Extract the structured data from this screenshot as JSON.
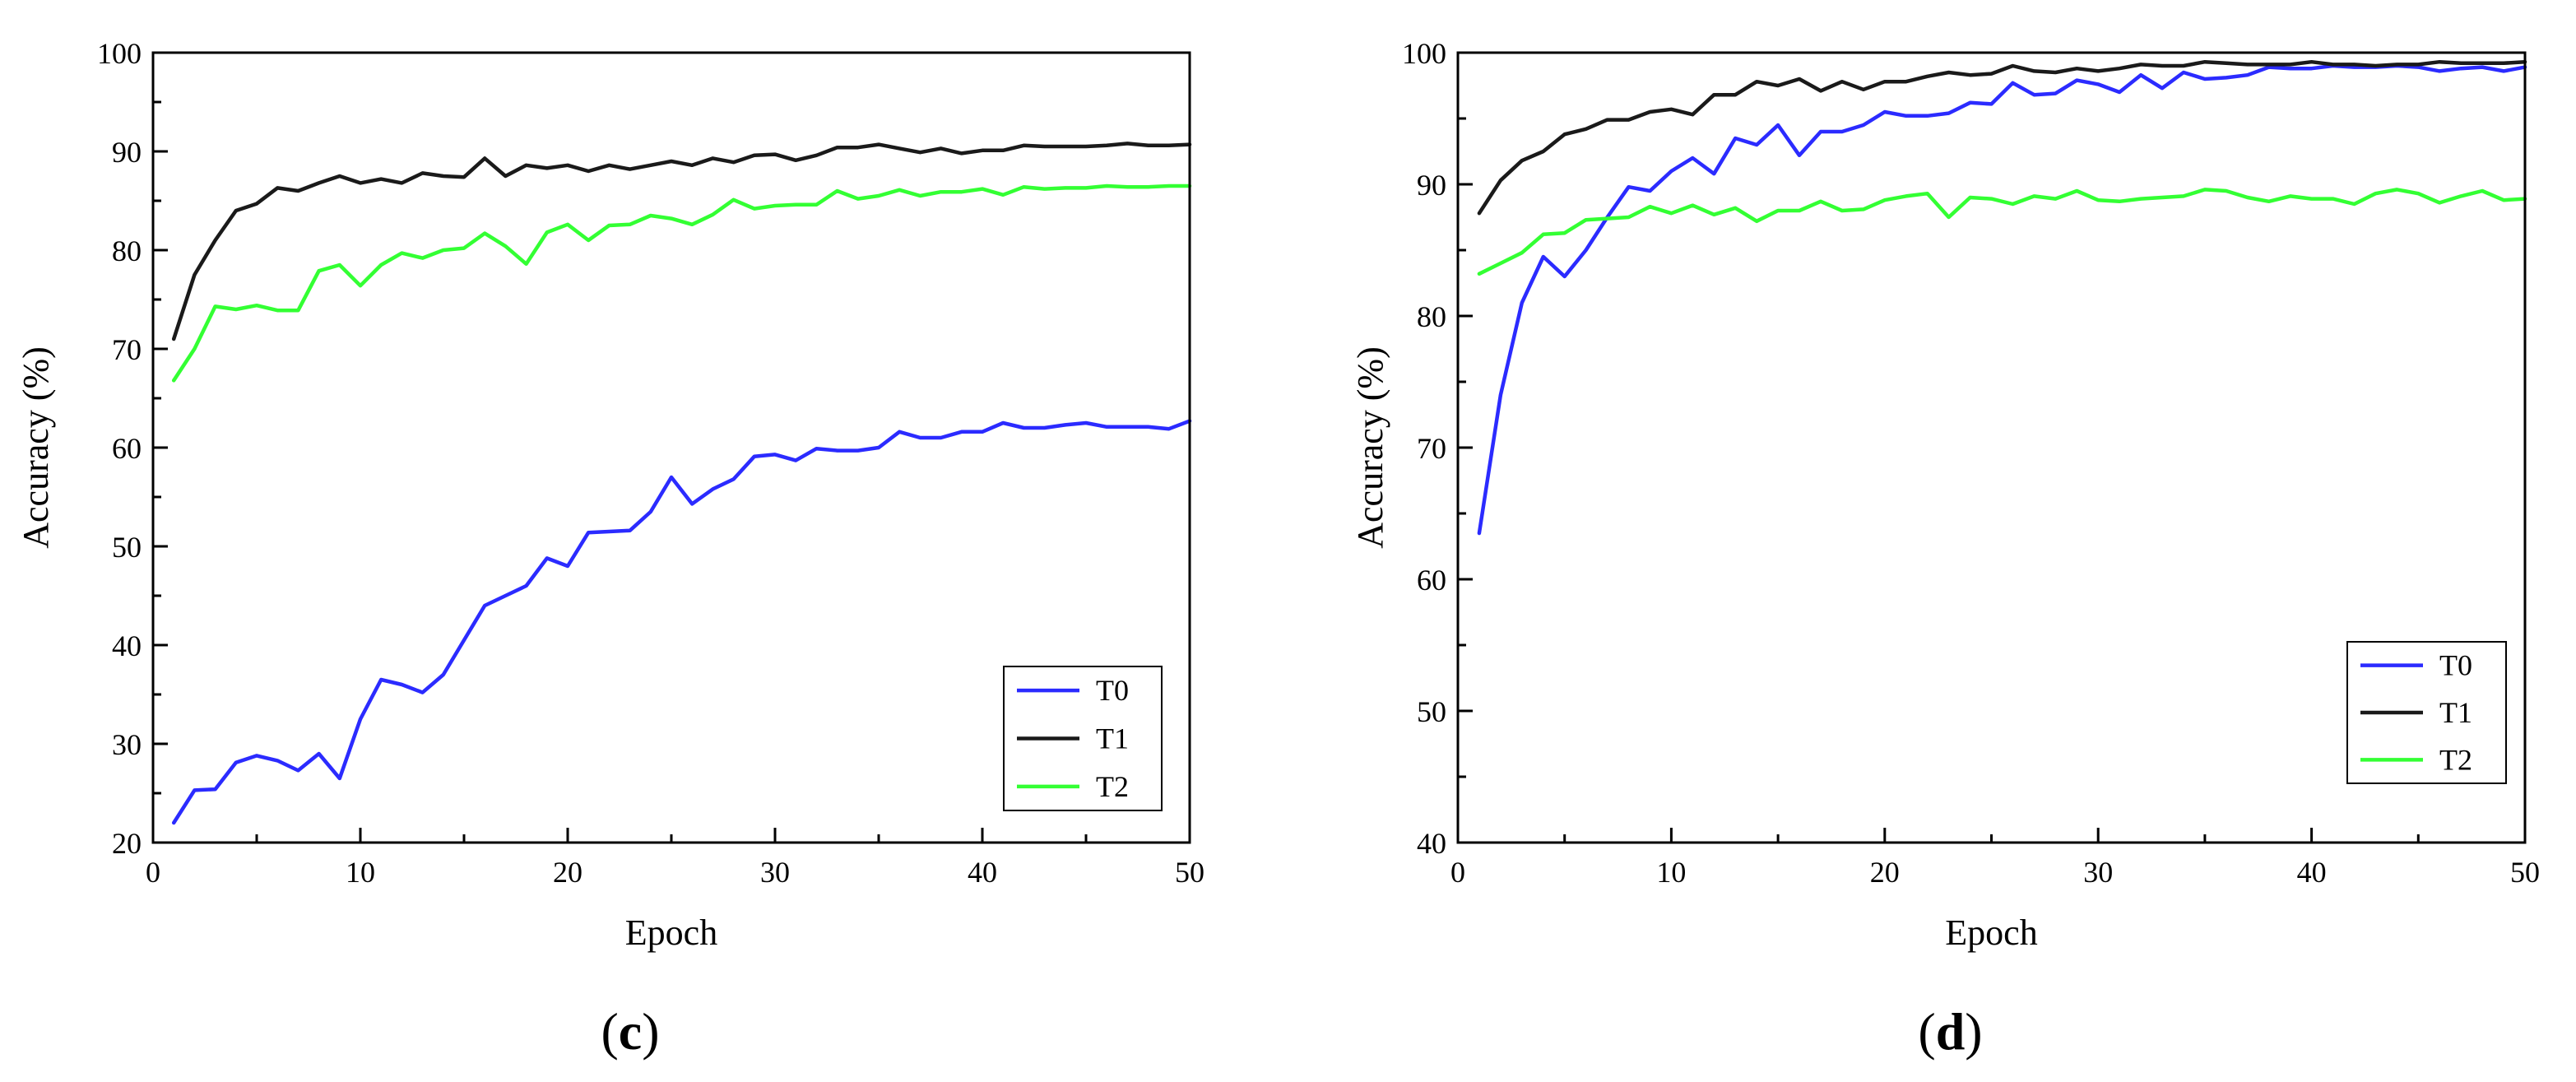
{
  "chart_data": [
    {
      "type": "line",
      "panel_label": {
        "open": "(",
        "letter": "c",
        "close": ")"
      },
      "xlabel": "Epoch",
      "ylabel": "Accuracy (%)",
      "xlim": [
        0,
        50
      ],
      "ylim": [
        20,
        100
      ],
      "xticks": [
        0,
        10,
        20,
        30,
        40,
        50
      ],
      "yticks": [
        20,
        30,
        40,
        50,
        60,
        70,
        80,
        90,
        100
      ],
      "grid": false,
      "legend": "bottom-right",
      "x": [
        1,
        2,
        3,
        4,
        5,
        6,
        7,
        8,
        9,
        10,
        11,
        12,
        13,
        14,
        15,
        16,
        17,
        18,
        19,
        20,
        21,
        22,
        23,
        24,
        25,
        26,
        27,
        28,
        29,
        30,
        31,
        32,
        33,
        34,
        35,
        36,
        37,
        38,
        39,
        40,
        41,
        42,
        43,
        44,
        45,
        46,
        47,
        48,
        49,
        50
      ],
      "series": [
        {
          "name": "T0",
          "color": "#2b2bff",
          "values": [
            22,
            25.3,
            25.4,
            28.1,
            28.8,
            28.3,
            27.3,
            29,
            26.5,
            32.5,
            36.5,
            36,
            35.2,
            37,
            40.5,
            44,
            45,
            46,
            48.8,
            48,
            51.4,
            51.5,
            51.6,
            53.5,
            57,
            54.3,
            55.8,
            56.8,
            59.1,
            59.3,
            58.7,
            59.9,
            59.7,
            59.7,
            60,
            61.6,
            61,
            61,
            61.6,
            61.6,
            62.5,
            62,
            62,
            62.3,
            62.5,
            62.1,
            62.1,
            62.1,
            61.9,
            62.7
          ]
        },
        {
          "name": "T1",
          "color": "#1a1a1a",
          "values": [
            71,
            77.5,
            81,
            84,
            84.7,
            86.3,
            86,
            86.8,
            87.5,
            86.8,
            87.2,
            86.8,
            87.8,
            87.5,
            87.4,
            89.3,
            87.5,
            88.6,
            88.3,
            88.6,
            88,
            88.6,
            88.2,
            88.6,
            89,
            88.6,
            89.3,
            88.9,
            89.6,
            89.7,
            89.1,
            89.6,
            90.4,
            90.4,
            90.7,
            90.3,
            89.9,
            90.3,
            89.8,
            90.1,
            90.1,
            90.6,
            90.5,
            90.5,
            90.5,
            90.6,
            90.8,
            90.6,
            90.6,
            90.7
          ]
        },
        {
          "name": "T2",
          "color": "#33ff33",
          "values": [
            66.8,
            70,
            74.3,
            74,
            74.4,
            73.9,
            73.9,
            77.9,
            78.5,
            76.4,
            78.5,
            79.7,
            79.2,
            80,
            80.2,
            81.7,
            80.4,
            78.6,
            81.8,
            82.6,
            81,
            82.5,
            82.6,
            83.5,
            83.2,
            82.6,
            83.6,
            85.1,
            84.2,
            84.5,
            84.6,
            84.6,
            86,
            85.2,
            85.5,
            86.1,
            85.5,
            85.9,
            85.9,
            86.2,
            85.6,
            86.4,
            86.2,
            86.3,
            86.3,
            86.5,
            86.4,
            86.4,
            86.5,
            86.5
          ]
        }
      ]
    },
    {
      "type": "line",
      "panel_label": {
        "open": "(",
        "letter": "d",
        "close": ")"
      },
      "xlabel": "Epoch",
      "ylabel": "Accuracy (%)",
      "xlim": [
        0,
        50
      ],
      "ylim": [
        40,
        100
      ],
      "xticks": [
        0,
        10,
        20,
        30,
        40,
        50
      ],
      "yticks": [
        40,
        50,
        60,
        70,
        80,
        90,
        100
      ],
      "grid": false,
      "legend": "bottom-right",
      "x": [
        1,
        2,
        3,
        4,
        5,
        6,
        7,
        8,
        9,
        10,
        11,
        12,
        13,
        14,
        15,
        16,
        17,
        18,
        19,
        20,
        21,
        22,
        23,
        24,
        25,
        26,
        27,
        28,
        29,
        30,
        31,
        32,
        33,
        34,
        35,
        36,
        37,
        38,
        39,
        40,
        41,
        42,
        43,
        44,
        45,
        46,
        47,
        48,
        49,
        50
      ],
      "series": [
        {
          "name": "T0",
          "color": "#2b2bff",
          "values": [
            63.5,
            74,
            81,
            84.5,
            83,
            85,
            87.5,
            89.8,
            89.5,
            91,
            92,
            90.8,
            93.5,
            93,
            94.5,
            92.2,
            94,
            94,
            94.5,
            95.5,
            95.2,
            95.2,
            95.4,
            96.2,
            96.1,
            97.7,
            96.8,
            96.9,
            97.9,
            97.6,
            97,
            98.3,
            97.3,
            98.5,
            98,
            98.1,
            98.3,
            98.9,
            98.8,
            98.8,
            99,
            98.9,
            98.9,
            99,
            98.9,
            98.6,
            98.8,
            98.9,
            98.6,
            98.9
          ]
        },
        {
          "name": "T1",
          "color": "#1a1a1a",
          "values": [
            87.8,
            90.3,
            91.8,
            92.5,
            93.8,
            94.2,
            94.9,
            94.9,
            95.5,
            95.7,
            95.3,
            96.8,
            96.8,
            97.8,
            97.5,
            98,
            97.1,
            97.8,
            97.2,
            97.8,
            97.8,
            98.2,
            98.5,
            98.3,
            98.4,
            99,
            98.6,
            98.5,
            98.8,
            98.6,
            98.8,
            99.1,
            99,
            99,
            99.3,
            99.2,
            99.1,
            99.1,
            99.1,
            99.3,
            99.1,
            99.1,
            99,
            99.1,
            99.1,
            99.3,
            99.2,
            99.2,
            99.2,
            99.3
          ]
        },
        {
          "name": "T2",
          "color": "#33ff33",
          "values": [
            83.2,
            84,
            84.8,
            86.2,
            86.3,
            87.3,
            87.4,
            87.5,
            88.3,
            87.8,
            88.4,
            87.7,
            88.2,
            87.2,
            88,
            88,
            88.7,
            88,
            88.1,
            88.8,
            89.1,
            89.3,
            87.5,
            89,
            88.9,
            88.5,
            89.1,
            88.9,
            89.5,
            88.8,
            88.7,
            88.9,
            89,
            89.1,
            89.6,
            89.5,
            89,
            88.7,
            89.1,
            88.9,
            88.9,
            88.5,
            89.3,
            89.6,
            89.3,
            88.6,
            89.1,
            89.5,
            88.8,
            88.9
          ]
        }
      ]
    }
  ]
}
